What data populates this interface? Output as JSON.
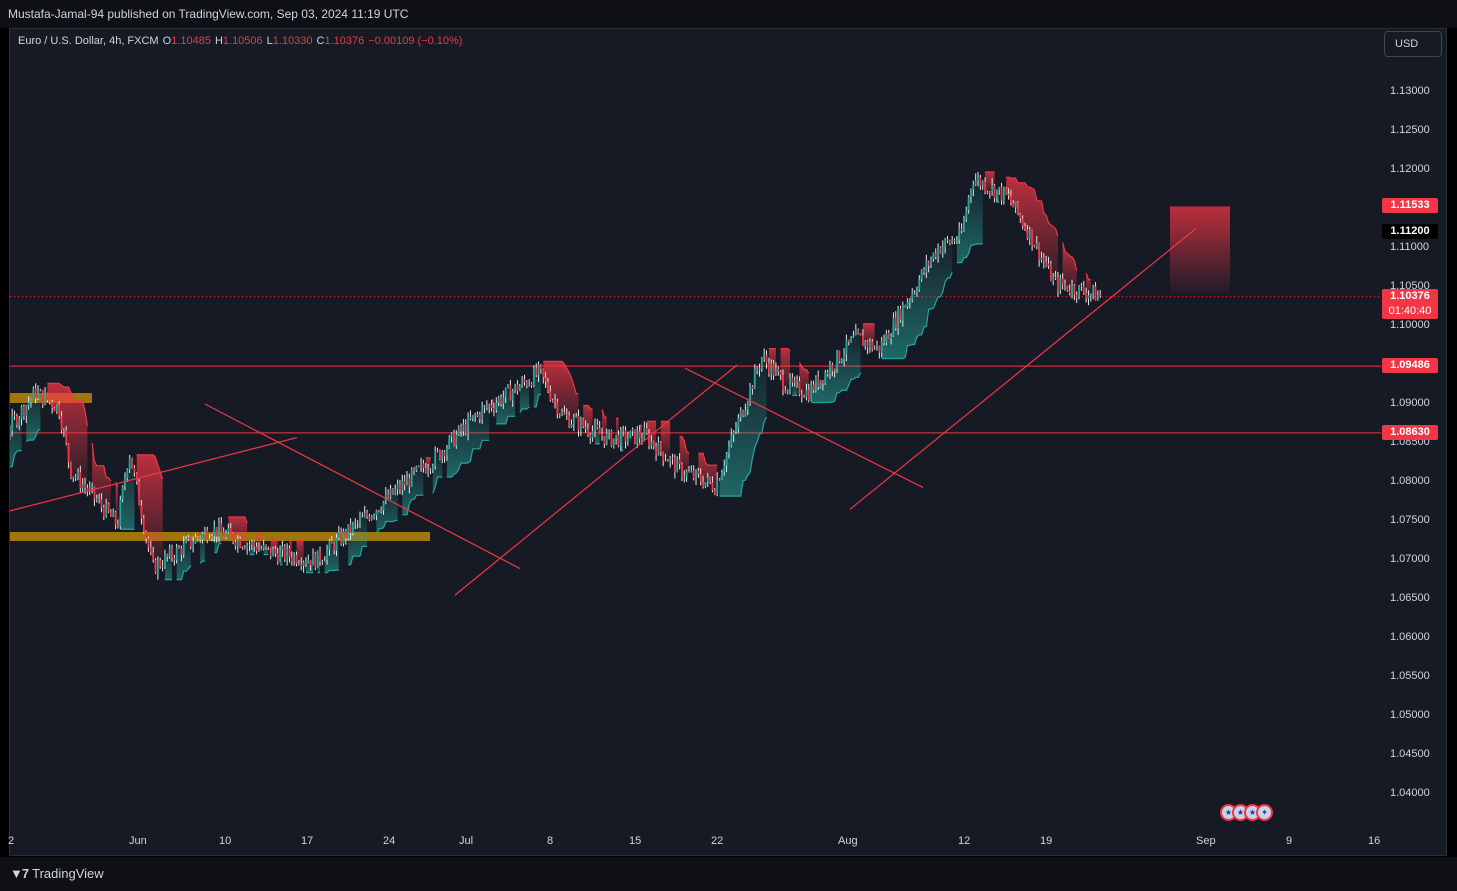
{
  "header": {
    "publisher_text": "Mustafa-Jamal-94 published on TradingView.com, Sep 03, 2024 11:19 UTC"
  },
  "legend": {
    "symbol": "Euro / U.S. Dollar, 4h, FXCM",
    "open_label": "O",
    "open": "1.10485",
    "high_label": "H",
    "high": "1.10506",
    "low_label": "L",
    "low": "1.10330",
    "close_label": "C",
    "close": "1.10376",
    "change": "−0.00109 (−0.10%)"
  },
  "currency_button": "USD",
  "price_axis": {
    "ticks": [
      "1.13000",
      "1.12500",
      "1.12000",
      "1.11000",
      "1.10500",
      "1.10000",
      "1.09000",
      "1.08500",
      "1.08000",
      "1.07500",
      "1.07000",
      "1.06500",
      "1.06000",
      "1.05500",
      "1.05000",
      "1.04500",
      "1.04000"
    ],
    "tick_values": [
      1.13,
      1.125,
      1.12,
      1.11,
      1.105,
      1.1,
      1.09,
      1.085,
      1.08,
      1.075,
      1.07,
      1.065,
      1.06,
      1.055,
      1.05,
      1.045,
      1.04
    ],
    "tags": [
      {
        "text": "1.11533",
        "value": 1.11533,
        "color": "#f23645"
      },
      {
        "text": "1.11200",
        "value": 1.112,
        "color": "#000000"
      },
      {
        "text": "1.10376",
        "value": 1.10376,
        "color": "#f23645",
        "countdown": "01:40:40"
      },
      {
        "text": "1.09486",
        "value": 1.09486,
        "color": "#f23645"
      },
      {
        "text": "1.08630",
        "value": 1.0863,
        "color": "#f23645"
      }
    ]
  },
  "time_axis": {
    "ticks": [
      "2",
      "Jun",
      "10",
      "17",
      "24",
      "Jul",
      "8",
      "15",
      "22",
      "Aug",
      "12",
      "19",
      "Sep",
      "9",
      "16"
    ]
  },
  "chart_data": {
    "type": "candlestick",
    "symbol": "EURUSD",
    "timeframe": "4h",
    "x_ticks": [
      "2",
      "Jun",
      "10",
      "17",
      "24",
      "Jul",
      "8",
      "15",
      "22",
      "Aug",
      "12",
      "19",
      "Sep",
      "9",
      "16"
    ],
    "ylim": [
      1.036,
      1.1335
    ],
    "grid": false,
    "horizontal_levels": [
      1.09486,
      1.0863
    ],
    "last_price": 1.10376,
    "anchors": [
      {
        "date": "May 28",
        "price": 1.0855
      },
      {
        "date": "May 30",
        "price": 1.0815
      },
      {
        "date": "Jun 04",
        "price": 1.0915
      },
      {
        "date": "Jun 06",
        "price": 1.0895
      },
      {
        "date": "Jun 07",
        "price": 1.0815
      },
      {
        "date": "Jun 11",
        "price": 1.0745
      },
      {
        "date": "Jun 12",
        "price": 1.084
      },
      {
        "date": "Jun 14",
        "price": 1.069
      },
      {
        "date": "Jun 19",
        "price": 1.074
      },
      {
        "date": "Jun 24",
        "price": 1.071
      },
      {
        "date": "Jun 28",
        "price": 1.07
      },
      {
        "date": "Jul 01",
        "price": 1.074
      },
      {
        "date": "Jul 08",
        "price": 1.083
      },
      {
        "date": "Jul 12",
        "price": 1.089
      },
      {
        "date": "Jul 17",
        "price": 1.094
      },
      {
        "date": "Jul 19",
        "price": 1.0885
      },
      {
        "date": "Jul 23",
        "price": 1.0855
      },
      {
        "date": "Jul 26",
        "price": 1.086
      },
      {
        "date": "Jul 29",
        "price": 1.0815
      },
      {
        "date": "Aug 01",
        "price": 1.0795
      },
      {
        "date": "Aug 05",
        "price": 1.096
      },
      {
        "date": "Aug 07",
        "price": 1.0925
      },
      {
        "date": "Aug 09",
        "price": 1.0915
      },
      {
        "date": "Aug 13",
        "price": 1.0985
      },
      {
        "date": "Aug 15",
        "price": 1.097
      },
      {
        "date": "Aug 20",
        "price": 1.11
      },
      {
        "date": "Aug 22",
        "price": 1.1115
      },
      {
        "date": "Aug 23",
        "price": 1.119
      },
      {
        "date": "Aug 26",
        "price": 1.1165
      },
      {
        "date": "Aug 28",
        "price": 1.1115
      },
      {
        "date": "Aug 30",
        "price": 1.1055
      },
      {
        "date": "Sep 03",
        "price": 1.1038
      }
    ]
  },
  "zones": [
    {
      "name": "upper-supply-zone",
      "color": "#b8860b"
    },
    {
      "name": "lower-demand-zone",
      "color": "#b8860b"
    }
  ],
  "colors": {
    "up": "#26a69a",
    "down": "#f23645",
    "background": "#161a25",
    "line": "#f23645"
  },
  "event_flags": [
    "US",
    "US",
    "US",
    "EU"
  ],
  "footer": {
    "brand": "TradingView",
    "logo_icon": "tradingview-logo-icon"
  }
}
